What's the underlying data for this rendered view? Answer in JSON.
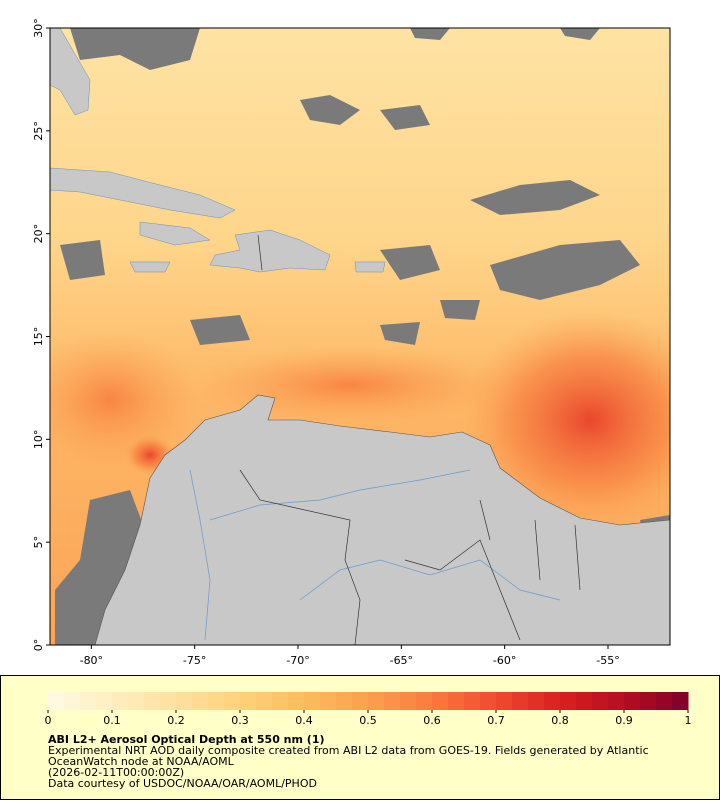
{
  "map": {
    "xlim": [
      -82,
      -52
    ],
    "ylim": [
      0,
      30
    ],
    "xticks": [
      {
        "value": -80,
        "label": "-80°"
      },
      {
        "value": -75,
        "label": "-75°"
      },
      {
        "value": -70,
        "label": "-70°"
      },
      {
        "value": -65,
        "label": "-65°"
      },
      {
        "value": -60,
        "label": "-60°"
      },
      {
        "value": -55,
        "label": "-55°"
      }
    ],
    "yticks": [
      {
        "value": 0,
        "label": "0°"
      },
      {
        "value": 5,
        "label": "5°"
      },
      {
        "value": 10,
        "label": "10°"
      },
      {
        "value": 15,
        "label": "15°"
      },
      {
        "value": 20,
        "label": "20°"
      },
      {
        "value": 25,
        "label": "25°"
      },
      {
        "value": 30,
        "label": "30°"
      }
    ]
  },
  "colorbar": {
    "lim": [
      0,
      1
    ],
    "ticks": [
      0,
      0.1,
      0.2,
      0.3,
      0.4,
      0.5,
      0.6,
      0.7,
      0.8,
      0.9,
      1
    ],
    "colors": [
      "#fffbe6",
      "#ffeec0",
      "#fee0a0",
      "#fed27a",
      "#fdbb5e",
      "#fca050",
      "#fb7a3e",
      "#f04a30",
      "#d8201f",
      "#b40e22",
      "#80002a"
    ]
  },
  "caption": {
    "title": "ABI L2+ Aerosol Optical Depth at 550 nm (1)",
    "lines": [
      "Experimental NRT AOD daily composite created from ABI L2 data from GOES-19. Fields generated by Atlantic",
      "OceanWatch node at NOAA/AOML",
      "(2026-02-11T00:00:00Z)",
      "Data courtesy of USDOC/NOAA/OAR/AOML/PHOD"
    ]
  }
}
